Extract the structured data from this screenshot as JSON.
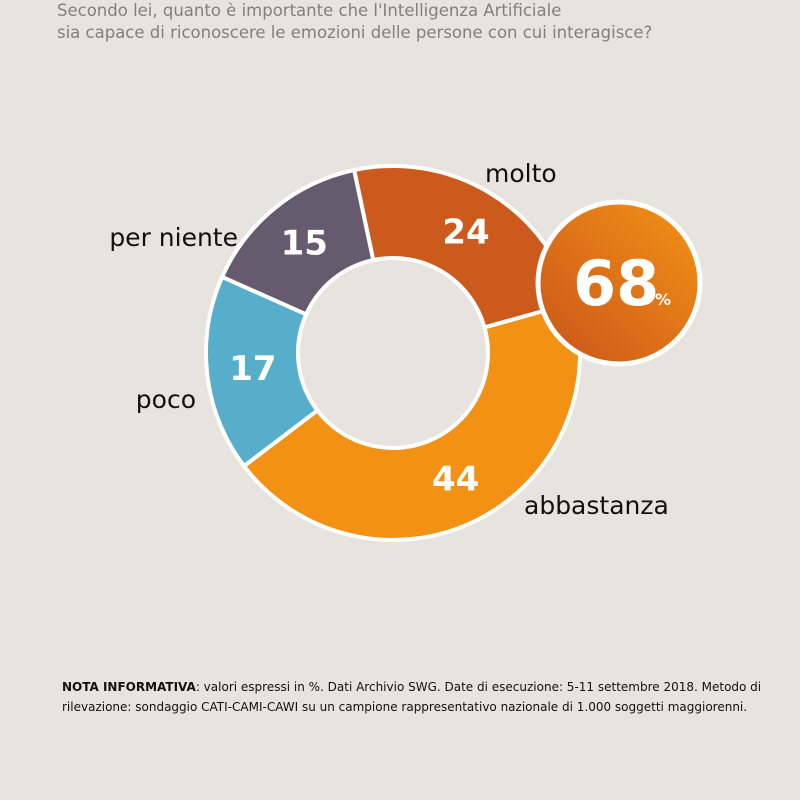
{
  "question": {
    "line1": "Secondo lei, quanto è importante che l'Intelligenza Artificiale",
    "line2": "sia capace di riconoscere le emozioni delle persone con cui interagisce?"
  },
  "chart_data": {
    "type": "pie",
    "variant": "donut",
    "unit": "%",
    "slices": [
      {
        "label": "molto",
        "value": 24,
        "color": "#cc5a1c"
      },
      {
        "label": "abbastanza",
        "value": 44,
        "color": "#f29113"
      },
      {
        "label": "poco",
        "value": 17,
        "color": "#56aecb"
      },
      {
        "label": "per niente",
        "value": 15,
        "color": "#665b6e"
      }
    ],
    "highlight": {
      "value": "68",
      "unit": "%",
      "color_from": "#c9541b",
      "color_to": "#f39315"
    }
  },
  "note": {
    "label": "NOTA INFORMATIVA",
    "text": ": valori espressi in %. Dati Archivio SWG. Date di esecuzione: 5-11 settembre 2018. Metodo di rilevazione: sondaggio CATI-CAMI-CAWI su un campione rappresentativo nazionale di 1.000 soggetti maggiorenni."
  }
}
